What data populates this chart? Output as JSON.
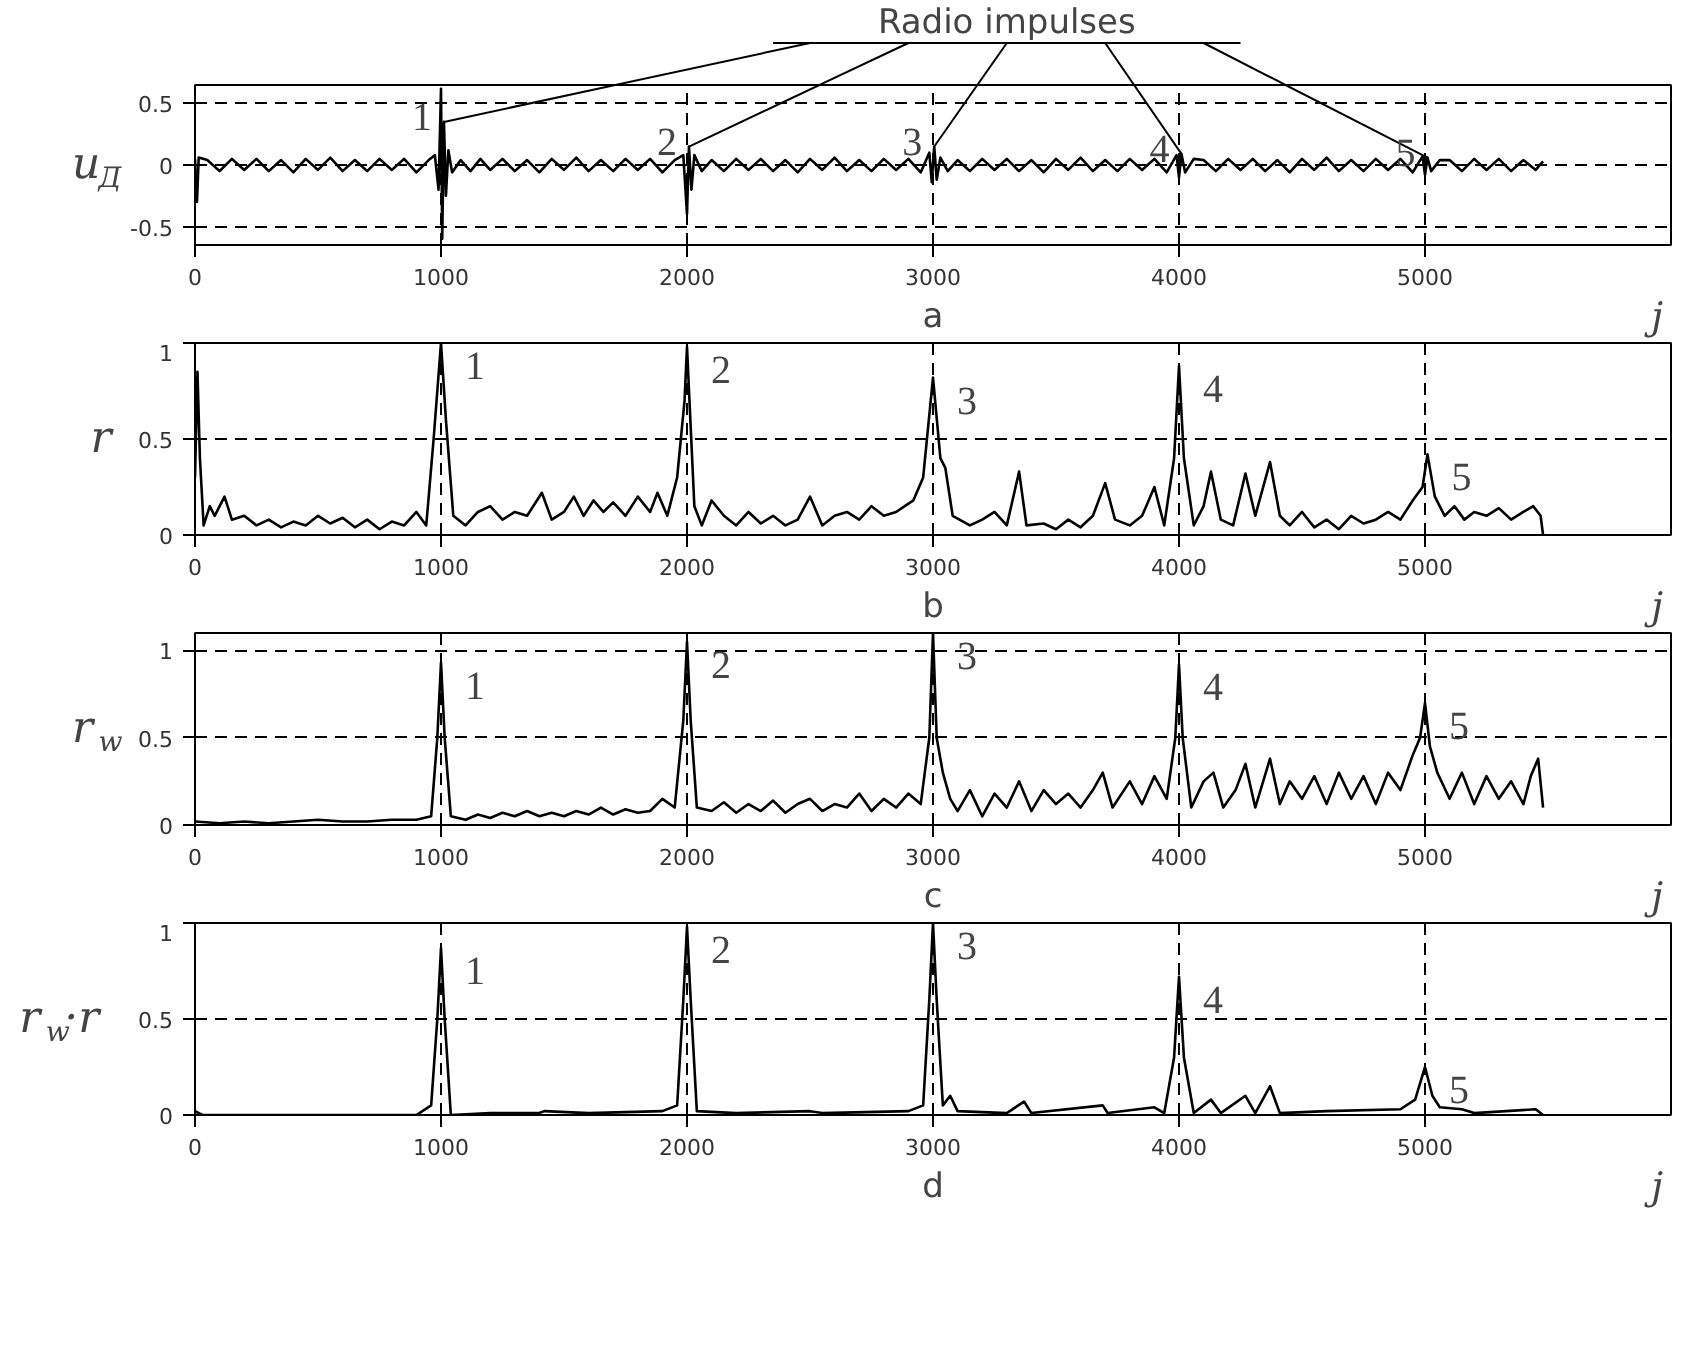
{
  "chart_data": [
    {
      "type": "line",
      "title": "a",
      "xlabel": "j",
      "ylabel": "u$_{Д}$",
      "xlim": [
        0,
        6000
      ],
      "xticks": [
        0,
        1000,
        2000,
        3000,
        4000,
        5000
      ],
      "ylim": [
        -0.65,
        0.65
      ],
      "yticks": [
        -0.5,
        0,
        0.5
      ],
      "grid": true,
      "line_style": "solid",
      "marker": "none",
      "annotations": [
        "Radio impulses",
        {
          "text": "1",
          "x": 1012,
          "y": 0.35
        },
        {
          "text": "2",
          "x": 2008,
          "y": 0.15
        },
        {
          "text": "3",
          "x": 3005,
          "y": 0.15
        },
        {
          "text": "4",
          "x": 4010,
          "y": 0.09
        },
        {
          "text": "5",
          "x": 5010,
          "y": 0.06
        }
      ],
      "series": [
        {
          "color": "#000000",
          "x": [
            0,
            8,
            15,
            50,
            100,
            150,
            200,
            250,
            300,
            350,
            400,
            450,
            500,
            550,
            600,
            650,
            700,
            750,
            800,
            850,
            900,
            950,
            975,
            990,
            1000,
            1005,
            1012,
            1020,
            1030,
            1045,
            1080,
            1120,
            1160,
            1200,
            1250,
            1300,
            1350,
            1400,
            1450,
            1500,
            1550,
            1600,
            1650,
            1700,
            1750,
            1800,
            1850,
            1900,
            1950,
            1985,
            2000,
            2008,
            2018,
            2030,
            2060,
            2100,
            2150,
            2200,
            2250,
            2300,
            2350,
            2400,
            2450,
            2500,
            2550,
            2600,
            2650,
            2700,
            2750,
            2800,
            2850,
            2900,
            2950,
            2985,
            2995,
            3005,
            3015,
            3030,
            3060,
            3100,
            3150,
            3200,
            3250,
            3300,
            3350,
            3400,
            3450,
            3500,
            3550,
            3600,
            3650,
            3700,
            3750,
            3800,
            3850,
            3900,
            3950,
            3990,
            4000,
            4010,
            4025,
            4060,
            4100,
            4150,
            4200,
            4250,
            4300,
            4350,
            4400,
            4450,
            4500,
            4550,
            4600,
            4650,
            4700,
            4750,
            4800,
            4850,
            4900,
            4950,
            4990,
            5000,
            5010,
            5025,
            5060,
            5100,
            5150,
            5200,
            5250,
            5300,
            5350,
            5400,
            5450,
            5480
          ],
          "values": [
            0.05,
            -0.3,
            0.06,
            0.04,
            -0.05,
            0.05,
            -0.04,
            0.05,
            -0.05,
            0.04,
            -0.06,
            0.05,
            -0.04,
            0.06,
            -0.05,
            0.04,
            -0.05,
            0.05,
            -0.04,
            0.05,
            -0.06,
            0.04,
            0.08,
            -0.2,
            0.62,
            -0.6,
            0.35,
            -0.25,
            0.12,
            -0.06,
            0.04,
            -0.05,
            0.05,
            -0.04,
            0.05,
            -0.05,
            0.04,
            -0.06,
            0.05,
            -0.04,
            0.06,
            -0.05,
            0.04,
            -0.05,
            0.05,
            -0.04,
            0.05,
            -0.06,
            0.04,
            0.08,
            -0.4,
            0.15,
            -0.2,
            0.08,
            -0.05,
            0.04,
            -0.05,
            0.05,
            -0.04,
            0.05,
            -0.05,
            0.04,
            -0.06,
            0.05,
            -0.04,
            0.06,
            -0.05,
            0.04,
            -0.05,
            0.05,
            -0.04,
            0.05,
            -0.06,
            0.1,
            -0.14,
            0.15,
            -0.12,
            0.06,
            -0.05,
            0.04,
            -0.05,
            0.05,
            -0.04,
            0.05,
            -0.05,
            0.04,
            -0.06,
            0.05,
            -0.04,
            0.06,
            -0.05,
            0.04,
            -0.05,
            0.05,
            -0.04,
            0.05,
            -0.06,
            0.08,
            -0.1,
            0.09,
            -0.06,
            0.05,
            0.04,
            -0.05,
            0.05,
            -0.04,
            0.05,
            -0.05,
            0.04,
            -0.06,
            0.05,
            -0.04,
            0.06,
            -0.05,
            0.04,
            -0.05,
            0.05,
            -0.04,
            0.05,
            -0.06,
            0.07,
            -0.08,
            0.06,
            -0.05,
            0.04,
            0.04,
            -0.05,
            0.05,
            -0.04,
            0.05,
            -0.05,
            0.04,
            -0.04,
            0.03
          ]
        }
      ]
    },
    {
      "type": "line",
      "title": "b",
      "xlabel": "j",
      "ylabel": "r",
      "xlim": [
        0,
        6000
      ],
      "xticks": [
        0,
        1000,
        2000,
        3000,
        4000,
        5000
      ],
      "ylim": [
        0,
        1
      ],
      "yticks": [
        0,
        0.5,
        1
      ],
      "grid": true,
      "line_style": "solid",
      "marker": "none",
      "annotations": [
        {
          "text": "1",
          "x": 1000,
          "y": 1.0
        },
        {
          "text": "2",
          "x": 2000,
          "y": 0.98
        },
        {
          "text": "3",
          "x": 3000,
          "y": 0.82
        },
        {
          "text": "4",
          "x": 4000,
          "y": 0.88
        },
        {
          "text": "5",
          "x": 5010,
          "y": 0.42
        }
      ],
      "series": [
        {
          "color": "#000000",
          "x": [
            0,
            10,
            20,
            35,
            60,
            80,
            120,
            150,
            200,
            250,
            300,
            350,
            400,
            450,
            500,
            550,
            600,
            650,
            700,
            750,
            800,
            850,
            900,
            940,
            970,
            1000,
            1020,
            1050,
            1100,
            1150,
            1200,
            1250,
            1300,
            1350,
            1410,
            1450,
            1500,
            1540,
            1580,
            1620,
            1660,
            1700,
            1750,
            1800,
            1850,
            1880,
            1920,
            1960,
            1990,
            2000,
            2010,
            2030,
            2060,
            2100,
            2150,
            2200,
            2250,
            2300,
            2350,
            2400,
            2450,
            2500,
            2550,
            2600,
            2650,
            2700,
            2750,
            2800,
            2850,
            2920,
            2960,
            3000,
            3030,
            3050,
            3080,
            3150,
            3200,
            3250,
            3300,
            3350,
            3380,
            3450,
            3500,
            3550,
            3600,
            3650,
            3700,
            3740,
            3800,
            3850,
            3900,
            3940,
            3980,
            4000,
            4020,
            4060,
            4100,
            4130,
            4170,
            4220,
            4270,
            4310,
            4370,
            4410,
            4450,
            4500,
            4550,
            4600,
            4650,
            4700,
            4750,
            4800,
            4850,
            4900,
            4950,
            4990,
            5010,
            5040,
            5080,
            5120,
            5160,
            5200,
            5250,
            5300,
            5350,
            5400,
            5440,
            5470,
            5480
          ],
          "values": [
            0.3,
            0.85,
            0.4,
            0.05,
            0.15,
            0.1,
            0.2,
            0.08,
            0.1,
            0.05,
            0.08,
            0.04,
            0.07,
            0.05,
            0.1,
            0.06,
            0.09,
            0.04,
            0.08,
            0.03,
            0.07,
            0.05,
            0.12,
            0.05,
            0.5,
            1.0,
            0.6,
            0.1,
            0.05,
            0.12,
            0.15,
            0.08,
            0.12,
            0.1,
            0.22,
            0.08,
            0.12,
            0.2,
            0.1,
            0.18,
            0.12,
            0.17,
            0.1,
            0.2,
            0.12,
            0.22,
            0.1,
            0.3,
            0.7,
            0.98,
            0.7,
            0.15,
            0.05,
            0.18,
            0.1,
            0.05,
            0.12,
            0.06,
            0.1,
            0.05,
            0.08,
            0.2,
            0.05,
            0.1,
            0.12,
            0.08,
            0.15,
            0.1,
            0.12,
            0.18,
            0.3,
            0.82,
            0.4,
            0.35,
            0.1,
            0.05,
            0.08,
            0.12,
            0.05,
            0.33,
            0.05,
            0.06,
            0.03,
            0.08,
            0.04,
            0.1,
            0.27,
            0.08,
            0.05,
            0.1,
            0.25,
            0.05,
            0.4,
            0.88,
            0.4,
            0.05,
            0.15,
            0.33,
            0.08,
            0.05,
            0.32,
            0.1,
            0.38,
            0.1,
            0.05,
            0.12,
            0.04,
            0.08,
            0.03,
            0.1,
            0.06,
            0.08,
            0.12,
            0.08,
            0.18,
            0.25,
            0.42,
            0.2,
            0.1,
            0.15,
            0.08,
            0.12,
            0.1,
            0.14,
            0.08,
            0.12,
            0.15,
            0.1,
            0
          ]
        }
      ]
    },
    {
      "type": "line",
      "title": "c",
      "xlabel": "j",
      "ylabel": "r$_{w}$",
      "xlim": [
        0,
        6000
      ],
      "xticks": [
        0,
        1000,
        2000,
        3000,
        4000,
        5000
      ],
      "ylim": [
        0,
        1.1
      ],
      "yticks": [
        0,
        0.5,
        1
      ],
      "grid": true,
      "line_style": "solid",
      "marker": "none",
      "annotations": [
        {
          "text": "1",
          "x": 1000,
          "y": 0.93
        },
        {
          "text": "2",
          "x": 2000,
          "y": 1.05
        },
        {
          "text": "3",
          "x": 3000,
          "y": 1.1
        },
        {
          "text": "4",
          "x": 4000,
          "y": 0.92
        },
        {
          "text": "5",
          "x": 5000,
          "y": 0.7
        }
      ],
      "series": [
        {
          "color": "#000000",
          "x": [
            0,
            100,
            200,
            300,
            400,
            500,
            600,
            700,
            800,
            900,
            960,
            985,
            1000,
            1015,
            1040,
            1100,
            1150,
            1200,
            1250,
            1300,
            1350,
            1400,
            1450,
            1500,
            1550,
            1600,
            1650,
            1700,
            1750,
            1800,
            1850,
            1900,
            1950,
            1985,
            2000,
            2015,
            2040,
            2100,
            2150,
            2200,
            2250,
            2300,
            2350,
            2400,
            2450,
            2500,
            2550,
            2600,
            2650,
            2700,
            2750,
            2800,
            2850,
            2900,
            2950,
            2985,
            3000,
            3015,
            3040,
            3070,
            3100,
            3150,
            3200,
            3250,
            3300,
            3350,
            3400,
            3450,
            3500,
            3550,
            3600,
            3650,
            3690,
            3730,
            3800,
            3850,
            3900,
            3950,
            3985,
            4000,
            4015,
            4050,
            4100,
            4140,
            4180,
            4230,
            4270,
            4310,
            4370,
            4410,
            4450,
            4500,
            4550,
            4600,
            4650,
            4700,
            4750,
            4800,
            4850,
            4900,
            4950,
            4980,
            5000,
            5020,
            5050,
            5100,
            5150,
            5200,
            5250,
            5300,
            5350,
            5400,
            5430,
            5460,
            5480
          ],
          "values": [
            0.02,
            0.01,
            0.02,
            0.01,
            0.02,
            0.03,
            0.02,
            0.02,
            0.03,
            0.03,
            0.05,
            0.5,
            0.93,
            0.5,
            0.05,
            0.03,
            0.06,
            0.04,
            0.07,
            0.05,
            0.08,
            0.05,
            0.07,
            0.05,
            0.08,
            0.06,
            0.1,
            0.06,
            0.09,
            0.07,
            0.08,
            0.15,
            0.1,
            0.6,
            1.05,
            0.6,
            0.1,
            0.08,
            0.13,
            0.07,
            0.12,
            0.08,
            0.14,
            0.07,
            0.12,
            0.15,
            0.08,
            0.12,
            0.1,
            0.18,
            0.08,
            0.15,
            0.1,
            0.18,
            0.12,
            0.5,
            1.1,
            0.5,
            0.3,
            0.15,
            0.08,
            0.2,
            0.05,
            0.18,
            0.1,
            0.25,
            0.08,
            0.2,
            0.12,
            0.18,
            0.1,
            0.2,
            0.3,
            0.1,
            0.25,
            0.12,
            0.28,
            0.15,
            0.5,
            0.92,
            0.5,
            0.1,
            0.25,
            0.3,
            0.1,
            0.2,
            0.35,
            0.1,
            0.38,
            0.12,
            0.25,
            0.15,
            0.28,
            0.12,
            0.3,
            0.15,
            0.28,
            0.12,
            0.3,
            0.2,
            0.4,
            0.5,
            0.7,
            0.45,
            0.3,
            0.15,
            0.3,
            0.12,
            0.28,
            0.15,
            0.25,
            0.12,
            0.28,
            0.38,
            0.1
          ]
        }
      ]
    },
    {
      "type": "line",
      "title": "d",
      "xlabel": "j",
      "ylabel": "r$_{w}$·r",
      "xlim": [
        0,
        6000
      ],
      "xticks": [
        0,
        1000,
        2000,
        3000,
        4000,
        5000
      ],
      "ylim": [
        0,
        1
      ],
      "yticks": [
        0,
        0.5,
        1
      ],
      "grid": true,
      "line_style": "solid",
      "marker": "none",
      "annotations": [
        {
          "text": "1",
          "x": 1000,
          "y": 0.87
        },
        {
          "text": "2",
          "x": 2000,
          "y": 0.98
        },
        {
          "text": "3",
          "x": 3000,
          "y": 1.0
        },
        {
          "text": "4",
          "x": 4000,
          "y": 0.72
        },
        {
          "text": "5",
          "x": 5000,
          "y": 0.25
        }
      ],
      "series": [
        {
          "color": "#000000",
          "x": [
            0,
            30,
            900,
            960,
            985,
            1000,
            1015,
            1040,
            1200,
            1400,
            1420,
            1600,
            1900,
            1960,
            1985,
            2000,
            2015,
            2040,
            2200,
            2500,
            2550,
            2900,
            2960,
            2985,
            3000,
            3015,
            3040,
            3070,
            3100,
            3300,
            3370,
            3400,
            3690,
            3710,
            3900,
            3940,
            3980,
            4000,
            4020,
            4060,
            4130,
            4170,
            4270,
            4310,
            4370,
            4410,
            4600,
            4900,
            4960,
            5000,
            5030,
            5060,
            5150,
            5200,
            5450,
            5480
          ],
          "values": [
            0.02,
            0,
            0,
            0.05,
            0.5,
            0.87,
            0.5,
            0,
            0.01,
            0.01,
            0.02,
            0.01,
            0.02,
            0.05,
            0.6,
            0.98,
            0.6,
            0.02,
            0.01,
            0.02,
            0.01,
            0.02,
            0.05,
            0.6,
            1.0,
            0.6,
            0.05,
            0.1,
            0.02,
            0.01,
            0.07,
            0.01,
            0.05,
            0.01,
            0.04,
            0.01,
            0.3,
            0.72,
            0.3,
            0.01,
            0.08,
            0.01,
            0.1,
            0.01,
            0.15,
            0.01,
            0.02,
            0.03,
            0.08,
            0.25,
            0.1,
            0.04,
            0.03,
            0.01,
            0.03,
            0
          ]
        }
      ]
    }
  ]
}
